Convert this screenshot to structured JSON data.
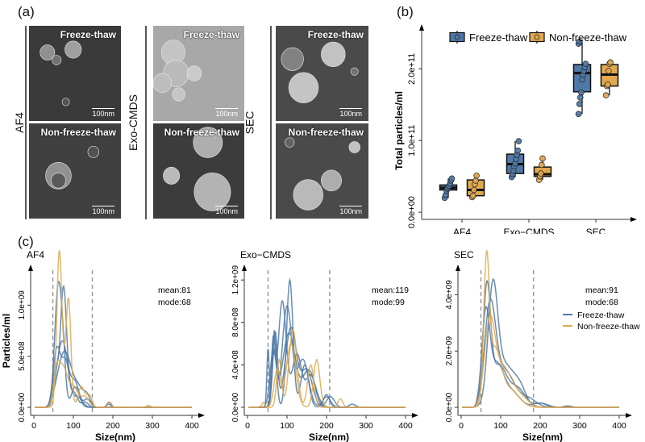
{
  "panels": {
    "a": {
      "label": "(a)",
      "methods": [
        {
          "name": "AF4",
          "images": [
            {
              "condition": "Freeze-thaw",
              "scale": "100nm"
            },
            {
              "condition": "Non-freeze-thaw",
              "scale": "100nm"
            }
          ]
        },
        {
          "name": "Exo-CMDS",
          "images": [
            {
              "condition": "Freeze-thaw",
              "scale": "100nm"
            },
            {
              "condition": "Non-freeze-thaw",
              "scale": "100nm"
            }
          ]
        },
        {
          "name": "SEC",
          "images": [
            {
              "condition": "Freeze-thaw",
              "scale": "100nm"
            },
            {
              "condition": "Non-freeze-thaw",
              "scale": "100nm"
            }
          ]
        }
      ]
    },
    "b": {
      "label": "(b)"
    },
    "c": {
      "label": "(c)"
    }
  },
  "colors": {
    "freeze_thaw": "#4f79a7",
    "non_freeze_thaw": "#e0a94f",
    "dashed": "#999999"
  },
  "chart_data": [
    {
      "id": "b",
      "type": "box",
      "title": "",
      "xlabel": "",
      "ylabel": "Total particles/ml",
      "ylim": [
        -10000000000.0,
        260000000000.0
      ],
      "yticks": [
        0,
        100000000000.0,
        200000000000.0
      ],
      "ytick_labels": [
        "0.0e+00",
        "1.0e+11",
        "2.0e+11"
      ],
      "categories": [
        "AF4",
        "Exo−CMDS",
        "SEC"
      ],
      "legend": {
        "position": "top",
        "entries": [
          "Freeze-thaw",
          "Non-freeze-thaw"
        ]
      },
      "series": [
        {
          "name": "Freeze-thaw",
          "boxes": [
            {
              "q1": 31000000000.0,
              "median": 34000000000.0,
              "q3": 38000000000.0,
              "min": 20000000000.0,
              "max": 47000000000.0,
              "points": [
                20000000000.0,
                24000000000.0,
                30000000000.0,
                33000000000.0,
                35000000000.0,
                37000000000.0,
                40000000000.0,
                44000000000.0,
                47000000000.0
              ]
            },
            {
              "q1": 54000000000.0,
              "median": 67000000000.0,
              "q3": 81000000000.0,
              "min": 49000000000.0,
              "max": 99000000000.0,
              "points": [
                49000000000.0,
                53000000000.0,
                58000000000.0,
                64000000000.0,
                68000000000.0,
                74000000000.0,
                80000000000.0,
                86000000000.0,
                99000000000.0
              ]
            },
            {
              "q1": 168000000000.0,
              "median": 194000000000.0,
              "q3": 206000000000.0,
              "min": 137000000000.0,
              "max": 238000000000.0,
              "points": [
                137000000000.0,
                151000000000.0,
                160000000000.0,
                167000000000.0,
                185000000000.0,
                192000000000.0,
                197000000000.0,
                202000000000.0,
                207000000000.0,
                235000000000.0,
                238000000000.0
              ]
            }
          ]
        },
        {
          "name": "Non-freeze-thaw",
          "boxes": [
            {
              "q1": 23000000000.0,
              "median": 31000000000.0,
              "q3": 45000000000.0,
              "min": 21000000000.0,
              "max": 51000000000.0,
              "points": [
                21000000000.0,
                23000000000.0,
                31000000000.0,
                39000000000.0,
                44000000000.0,
                51000000000.0
              ]
            },
            {
              "q1": 50000000000.0,
              "median": 53000000000.0,
              "q3": 63000000000.0,
              "min": 45000000000.0,
              "max": 75000000000.0,
              "points": [
                45000000000.0,
                50000000000.0,
                54000000000.0,
                66000000000.0,
                75000000000.0
              ]
            },
            {
              "q1": 176000000000.0,
              "median": 192000000000.0,
              "q3": 206000000000.0,
              "min": 163000000000.0,
              "max": 209000000000.0,
              "points": [
                163000000000.0,
                176000000000.0,
                178000000000.0,
                197000000000.0,
                207000000000.0,
                209000000000.0
              ]
            }
          ]
        }
      ]
    },
    {
      "id": "c-af4",
      "type": "line",
      "title": "AF4",
      "xlabel": "Size(nm)",
      "ylabel": "Particles/ml",
      "xlim": [
        0,
        400
      ],
      "xticks": [
        0,
        100,
        200,
        300,
        400
      ],
      "ylim": [
        0,
        1350000000.0
      ],
      "yticks": [
        0,
        500000000.0,
        1000000000.0
      ],
      "ytick_labels": [
        "0.0e+00",
        "5.0e+08",
        "1.0e+09"
      ],
      "annotations": [
        "mean:81",
        "mode:68"
      ],
      "vlines": [
        48,
        148
      ],
      "series": [
        {
          "name": "Freeze-thaw",
          "peaks": [
            [
              62,
              1200000000.0,
              9
            ],
            [
              75,
              300000000.0,
              6
            ],
            [
              105,
              200000000.0,
              10
            ],
            [
              190,
              30000000.0,
              5
            ]
          ]
        },
        {
          "name": "Freeze-thaw",
          "peaks": [
            [
              75,
              1180000000.0,
              8
            ],
            [
              55,
              350000000.0,
              6
            ],
            [
              100,
              150000000.0,
              10
            ],
            [
              130,
              50000000.0,
              8
            ]
          ]
        },
        {
          "name": "Freeze-thaw",
          "peaks": [
            [
              72,
              650000000.0,
              14
            ],
            [
              105,
              220000000.0,
              10
            ],
            [
              135,
              80000000.0,
              8
            ]
          ]
        },
        {
          "name": "Freeze-thaw",
          "peaks": [
            [
              78,
              550000000.0,
              18
            ],
            [
              115,
              150000000.0,
              12
            ],
            [
              135,
              100000000.0,
              8
            ],
            [
              190,
              50000000.0,
              5
            ]
          ]
        },
        {
          "name": "Freeze-thaw",
          "peaks": [
            [
              58,
              550000000.0,
              9
            ],
            [
              80,
              450000000.0,
              10
            ],
            [
              110,
              100000000.0,
              12
            ]
          ]
        },
        {
          "name": "Non-freeze-thaw",
          "peaks": [
            [
              64,
              1280000000.0,
              6
            ],
            [
              88,
              970000000.0,
              6
            ],
            [
              72,
              350000000.0,
              10
            ],
            [
              120,
              200000000.0,
              8
            ],
            [
              140,
              120000000.0,
              7
            ],
            [
              192,
              50000000.0,
              5
            ],
            [
              290,
              20000000.0,
              5
            ]
          ]
        },
        {
          "name": "Non-freeze-thaw",
          "peaks": [
            [
              58,
              350000000.0,
              8
            ],
            [
              75,
              350000000.0,
              10
            ],
            [
              100,
              200000000.0,
              12
            ],
            [
              130,
              100000000.0,
              10
            ]
          ]
        }
      ]
    },
    {
      "id": "c-exo",
      "type": "line",
      "title": "Exo−CMDS",
      "xlabel": "Size(nm)",
      "ylabel": "",
      "xlim": [
        0,
        400
      ],
      "xticks": [
        0,
        100,
        200,
        300,
        400
      ],
      "ylim": [
        0,
        1300000000.0
      ],
      "yticks": [
        0,
        400000000.0,
        800000000.0,
        1200000000.0
      ],
      "ytick_labels": [
        "0.0e+00",
        "4.0e+08",
        "8.0e+08",
        "1.2e+09"
      ],
      "annotations": [
        "mean:119",
        "mode:99"
      ],
      "vlines": [
        52,
        208
      ],
      "series": [
        {
          "name": "Freeze-thaw",
          "peaks": [
            [
              107,
              1200000000.0,
              8
            ],
            [
              68,
              550000000.0,
              6
            ],
            [
              145,
              400000000.0,
              10
            ],
            [
              200,
              120000000.0,
              8
            ]
          ]
        },
        {
          "name": "Freeze-thaw",
          "peaks": [
            [
              88,
              1000000000.0,
              10
            ],
            [
              65,
              600000000.0,
              5
            ],
            [
              125,
              500000000.0,
              12
            ],
            [
              160,
              300000000.0,
              12
            ]
          ]
        },
        {
          "name": "Freeze-thaw",
          "peaks": [
            [
              100,
              950000000.0,
              12
            ],
            [
              68,
              700000000.0,
              5
            ],
            [
              140,
              450000000.0,
              14
            ],
            [
              200,
              100000000.0,
              10
            ]
          ]
        },
        {
          "name": "Freeze-thaw",
          "peaks": [
            [
              52,
              550000000.0,
              3
            ],
            [
              70,
              700000000.0,
              6
            ],
            [
              110,
              750000000.0,
              14
            ],
            [
              150,
              350000000.0,
              14
            ],
            [
              210,
              100000000.0,
              10
            ]
          ]
        },
        {
          "name": "Freeze-thaw",
          "peaks": [
            [
              65,
              500000000.0,
              8
            ],
            [
              105,
              700000000.0,
              16
            ],
            [
              155,
              350000000.0,
              16
            ],
            [
              265,
              30000000.0,
              8
            ]
          ]
        },
        {
          "name": "Non-freeze-thaw",
          "peaks": [
            [
              115,
              730000000.0,
              10
            ],
            [
              80,
              450000000.0,
              6
            ],
            [
              160,
              400000000.0,
              8
            ],
            [
              28,
              80000000.0,
              3
            ]
          ]
        },
        {
          "name": "Non-freeze-thaw",
          "peaks": [
            [
              175,
              450000000.0,
              8
            ],
            [
              110,
              600000000.0,
              12
            ],
            [
              75,
              350000000.0,
              8
            ],
            [
              235,
              80000000.0,
              6
            ],
            [
              40,
              50000000.0,
              4
            ]
          ]
        }
      ]
    },
    {
      "id": "c-sec",
      "type": "line",
      "title": "SEC",
      "xlabel": "Size(nm)",
      "ylabel": "",
      "xlim": [
        0,
        400
      ],
      "xticks": [
        0,
        100,
        200,
        300,
        400
      ],
      "ylim": [
        0,
        4900000000.0
      ],
      "yticks": [
        0,
        2000000000.0,
        4000000000.0
      ],
      "ytick_labels": [
        "0.0e+00",
        "2.0e+09",
        "4.0e+09"
      ],
      "annotations": [
        "mean:91",
        "mode:68"
      ],
      "vlines": [
        50,
        183
      ],
      "legend": {
        "position": "right",
        "entries": [
          "Freeze-thaw",
          "Non-freeze-thaw"
        ]
      },
      "series": [
        {
          "name": "Freeze-thaw",
          "peaks": [
            [
              65,
              3900000000.0,
              9
            ],
            [
              95,
              1500000000.0,
              22
            ],
            [
              145,
              600000000.0,
              18
            ],
            [
              200,
              150000000.0,
              15
            ]
          ]
        },
        {
          "name": "Freeze-thaw",
          "peaks": [
            [
              80,
              3800000000.0,
              12
            ],
            [
              110,
              1500000000.0,
              25
            ],
            [
              150,
              500000000.0,
              15
            ],
            [
              270,
              50000000.0,
              10
            ]
          ]
        },
        {
          "name": "Freeze-thaw",
          "peaks": [
            [
              73,
              3400000000.0,
              14
            ],
            [
              110,
              1300000000.0,
              25
            ],
            [
              170,
              300000000.0,
              20
            ]
          ]
        },
        {
          "name": "Freeze-thaw",
          "peaks": [
            [
              62,
              3100000000.0,
              10
            ],
            [
              90,
              1500000000.0,
              18
            ],
            [
              130,
              500000000.0,
              20
            ],
            [
              200,
              150000000.0,
              18
            ]
          ]
        },
        {
          "name": "Non-freeze-thaw",
          "peaks": [
            [
              64,
              4700000000.0,
              7
            ],
            [
              85,
              2000000000.0,
              16
            ],
            [
              125,
              600000000.0,
              22
            ]
          ]
        },
        {
          "name": "Non-freeze-thaw",
          "peaks": [
            [
              72,
              2800000000.0,
              13
            ],
            [
              105,
              1400000000.0,
              22
            ],
            [
              150,
              350000000.0,
              20
            ]
          ]
        }
      ]
    }
  ]
}
